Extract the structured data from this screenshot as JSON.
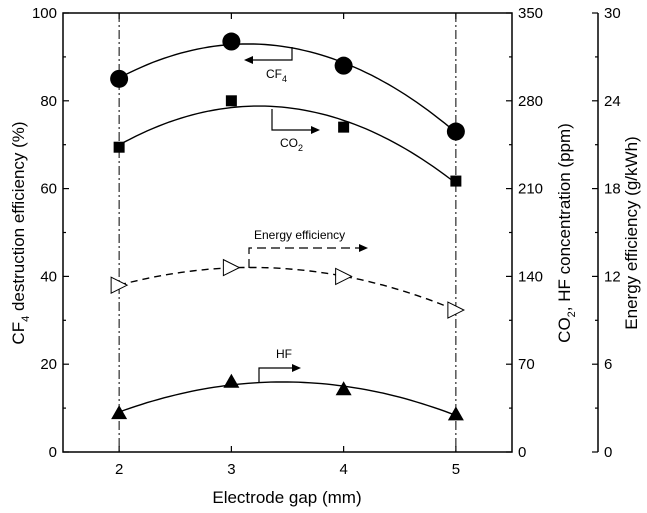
{
  "chart_data": {
    "type": "scatter",
    "x": [
      2,
      3,
      4,
      5
    ],
    "xlabel": "Electrode gap (mm)",
    "xlim": [
      1.5,
      5.5
    ],
    "xticks": [
      "2",
      "3",
      "4",
      "5"
    ],
    "vertical_reference_lines": [
      2,
      5
    ],
    "grid": false,
    "legend": "none",
    "axes": {
      "left": {
        "label_main": "CF",
        "label_sub": "4",
        "label_rest": " destruction efficiency (%)",
        "ylim": [
          0,
          100
        ],
        "ticks": [
          "0",
          "20",
          "40",
          "60",
          "80",
          "100"
        ]
      },
      "right1": {
        "label_pre": "CO",
        "label_sub": "2",
        "label_rest": ", HF concentration (ppm)",
        "ylim": [
          0,
          350
        ],
        "ticks": [
          "0",
          "70",
          "140",
          "210",
          "280",
          "350"
        ]
      },
      "right2": {
        "label": "Energy efficiency (g/kWh)",
        "ylim": [
          0,
          30
        ],
        "ticks": [
          "0",
          "6",
          "12",
          "18",
          "24",
          "30"
        ]
      }
    },
    "series": [
      {
        "marker": "filled-circle",
        "axis": "left",
        "values": [
          85,
          93.5,
          88,
          73
        ],
        "fit": "solid"
      },
      {
        "marker": "filled-square",
        "axis": "right1",
        "values": [
          243,
          280,
          259,
          216
        ],
        "fit": "solid"
      },
      {
        "marker": "open-triangle-right",
        "axis": "right2",
        "values": [
          11.4,
          12.6,
          12.0,
          9.7
        ],
        "fit": "dashed"
      },
      {
        "marker": "filled-triangle-up",
        "axis": "right1",
        "values": [
          31,
          56,
          50,
          30
        ],
        "fit": "solid"
      }
    ],
    "annotations": [
      {
        "label_main": "CF",
        "label_sub": "4"
      },
      {
        "label_main": "CO",
        "label_sub": "2"
      },
      {
        "label_main": "Energy efficiency",
        "label_sub": ""
      },
      {
        "label_main": "HF",
        "label_sub": ""
      }
    ]
  }
}
